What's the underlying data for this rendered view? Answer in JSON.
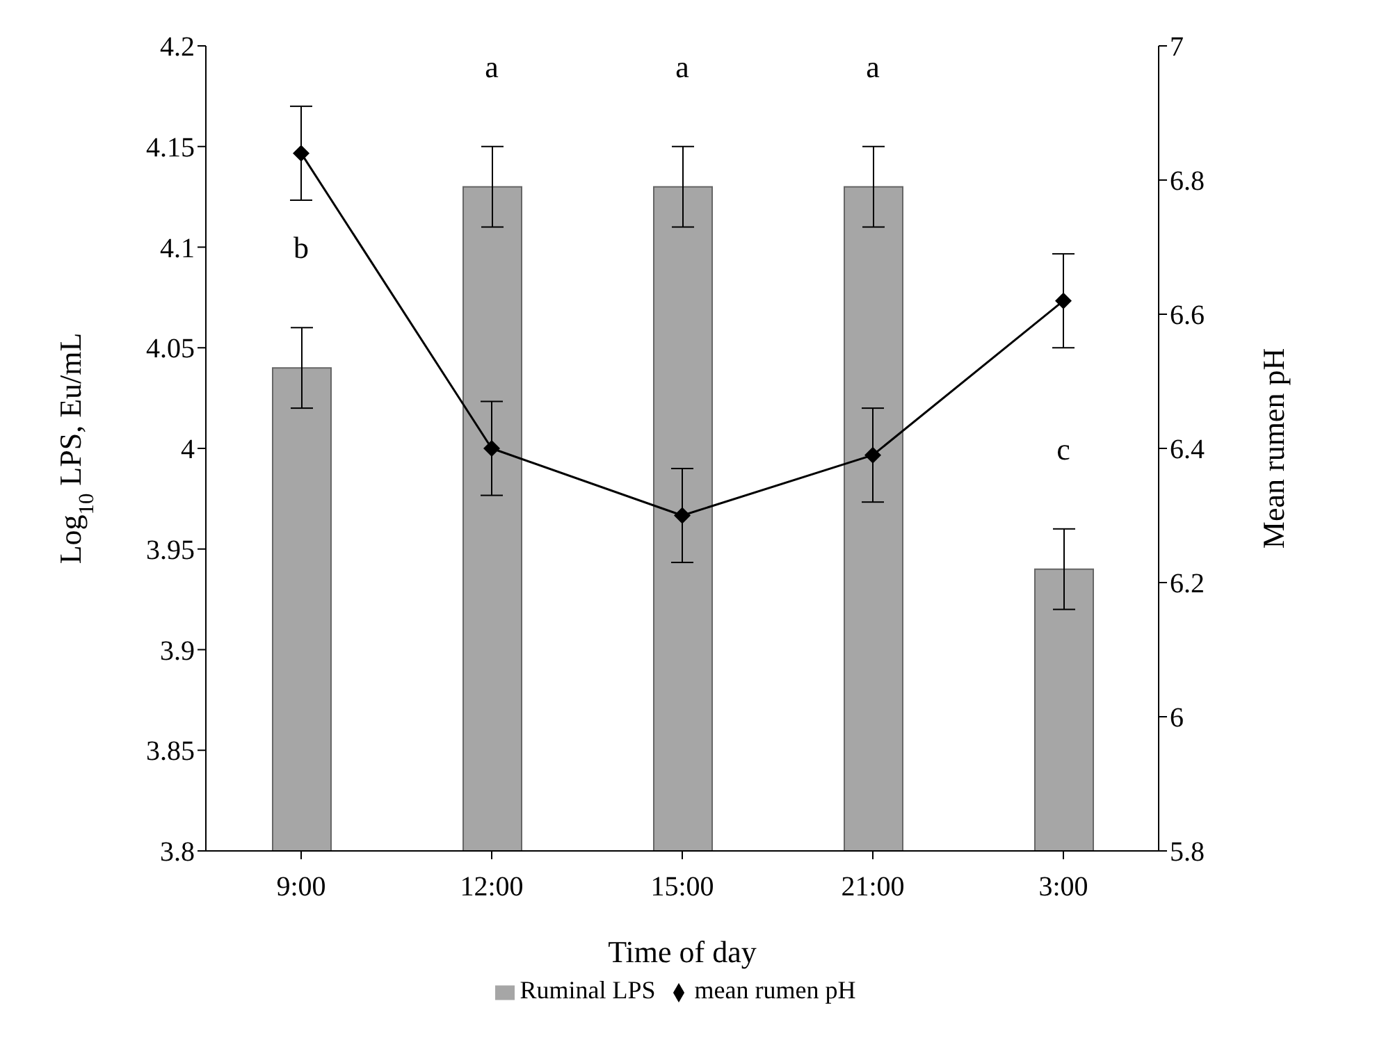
{
  "chart_data": {
    "type": "bar",
    "xlabel": "Time of day",
    "ylabel": "Log$_{10}$ LPS, Eu/mL",
    "y2label": "Mean rumen pH",
    "categories": [
      "9:00",
      "12:00",
      "15:00",
      "21:00",
      "3:00"
    ],
    "series": [
      {
        "name": "Ruminal LPS",
        "color": "#a6a6a6",
        "values": [
          4.04,
          4.13,
          4.13,
          4.13,
          3.94
        ],
        "errors": [
          0.02,
          0.02,
          0.02,
          0.02,
          0.02
        ]
      },
      {
        "name": "mean rumen pH",
        "type": "line",
        "axis": "y2",
        "color": "#000000",
        "marker": "diamond",
        "values": [
          6.84,
          6.4,
          6.3,
          6.39,
          6.62
        ],
        "errors": [
          0.07,
          0.07,
          0.07,
          0.07,
          0.07
        ]
      }
    ],
    "ylim": [
      3.8,
      4.2
    ],
    "yticks": [
      3.8,
      3.85,
      3.9,
      3.95,
      4,
      4.05,
      4.1,
      4.15,
      4.2
    ],
    "y2lim": [
      5.8,
      7
    ],
    "y2ticks": [
      5.8,
      6,
      6.2,
      6.4,
      6.6,
      6.8,
      7
    ],
    "annotations": [
      "b",
      "a",
      "a",
      "a",
      "c"
    ],
    "grid": false,
    "legend": "bottom"
  }
}
